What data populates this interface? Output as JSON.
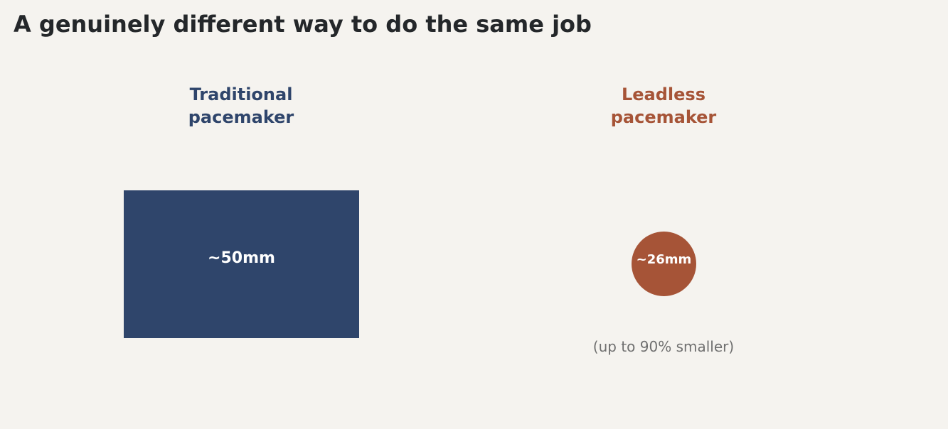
{
  "title": "A genuinely different way to do the same job",
  "traditional": {
    "heading_line1": "Traditional",
    "heading_line2": "pacemaker",
    "size_label": "~50mm",
    "color": "#2f456b"
  },
  "leadless": {
    "heading_line1": "Leadless",
    "heading_line2": "pacemaker",
    "size_label": "~26mm",
    "note": "(up to 90% smaller)",
    "color": "#a65437"
  },
  "colors": {
    "background": "#f5f3ef",
    "title": "#24272a",
    "note": "#6f6f6f"
  }
}
